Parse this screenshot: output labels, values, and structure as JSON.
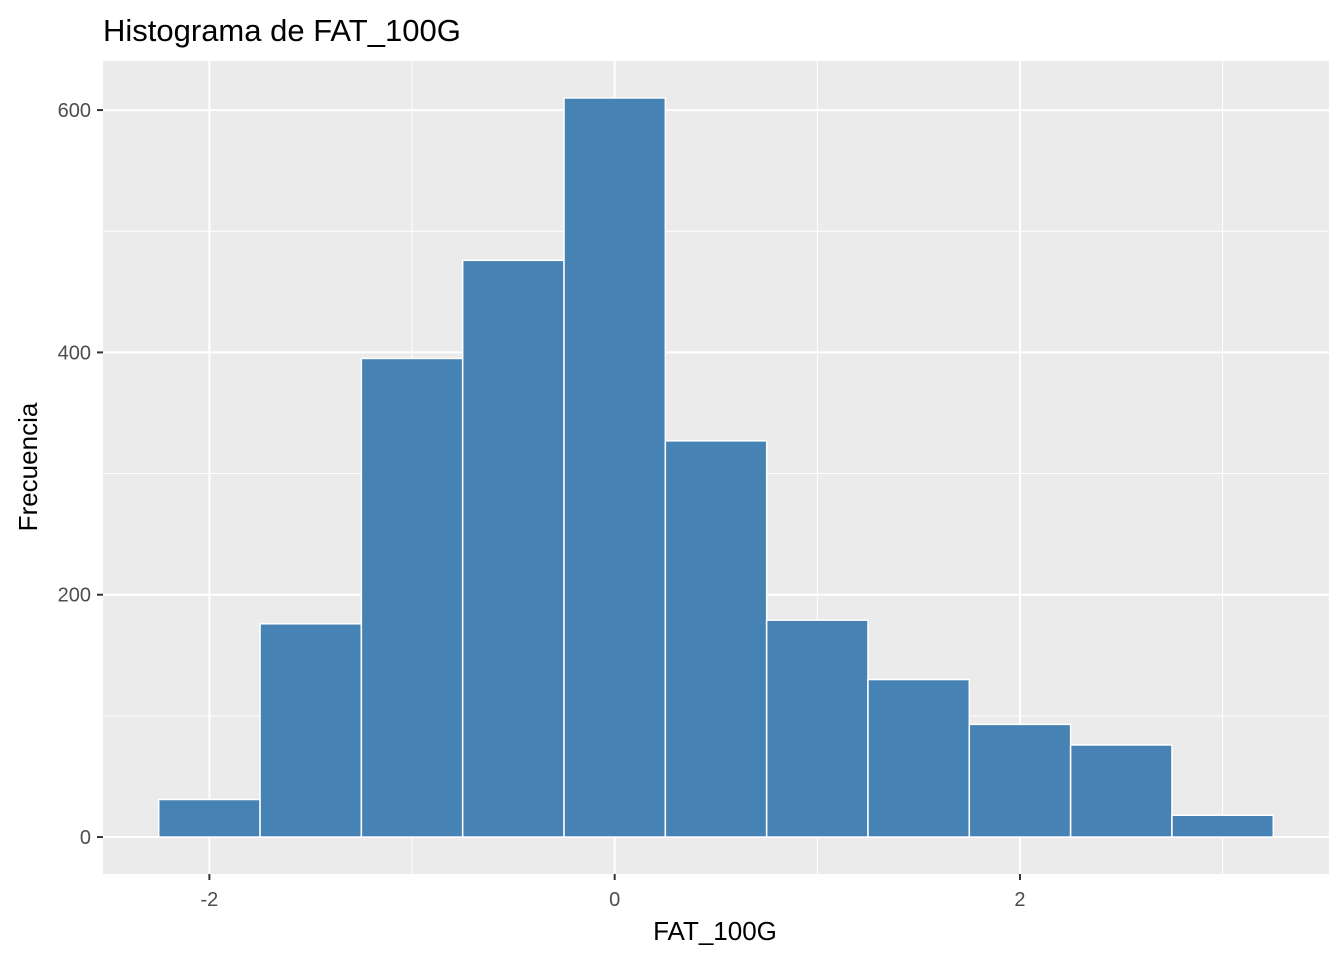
{
  "chart_data": {
    "type": "bar",
    "title": "Histograma de FAT_100G",
    "xlabel": "FAT_100G",
    "ylabel": "Frecuencia",
    "bin_width": 0.5,
    "bins": [
      {
        "x0": -2.25,
        "x1": -1.75,
        "count": 31
      },
      {
        "x0": -1.75,
        "x1": -1.25,
        "count": 176
      },
      {
        "x0": -1.25,
        "x1": -0.75,
        "count": 395
      },
      {
        "x0": -0.75,
        "x1": -0.25,
        "count": 476
      },
      {
        "x0": -0.25,
        "x1": 0.25,
        "count": 610
      },
      {
        "x0": 0.25,
        "x1": 0.75,
        "count": 327
      },
      {
        "x0": 0.75,
        "x1": 1.25,
        "count": 179
      },
      {
        "x0": 1.25,
        "x1": 1.75,
        "count": 130
      },
      {
        "x0": 1.75,
        "x1": 2.25,
        "count": 93
      },
      {
        "x0": 2.25,
        "x1": 2.75,
        "count": 76
      },
      {
        "x0": 2.75,
        "x1": 3.25,
        "count": 18
      }
    ],
    "xlim": [
      -2.525,
      3.525
    ],
    "ylim": [
      -30.5,
      640.5
    ],
    "x_major_ticks": [
      -2,
      0,
      2
    ],
    "x_tick_labels": [
      "-2",
      "0",
      "2"
    ],
    "x_minor_ticks": [
      -1,
      1,
      3
    ],
    "y_major_ticks": [
      0,
      200,
      400,
      600
    ],
    "y_tick_labels": [
      "0",
      "200",
      "400",
      "600"
    ],
    "y_minor_ticks": [
      100,
      300,
      500
    ],
    "grid": true,
    "legend": "none",
    "bar_fill": "#4682b4",
    "bar_outline": "#ffffff",
    "panel_background": "#ebebeb",
    "gridline_color": "#ffffff"
  }
}
